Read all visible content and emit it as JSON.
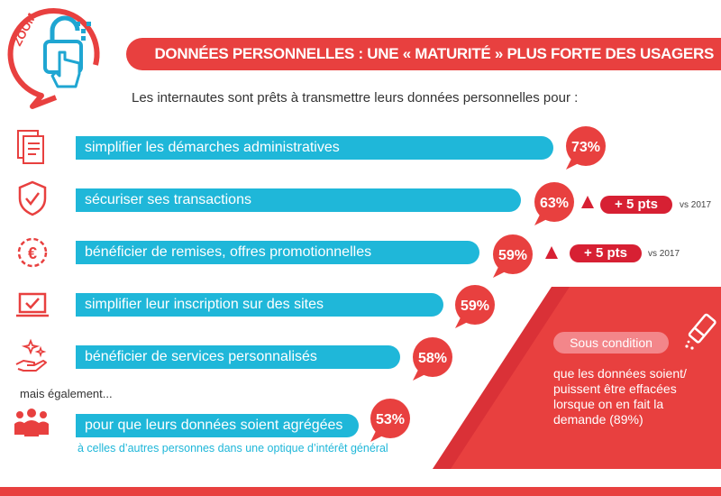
{
  "header": {
    "zoom_label": "ZOOM",
    "title": "DONNÉES PERSONNELLES : UNE « MATURITÉ » PLUS FORTE DES USAGERS"
  },
  "intro": "Les internautes sont prêts à transmettre leurs données personnelles pour :",
  "also_label": "mais également...",
  "sub_note": "à celles d’autres personnes dans une optique d’intérêt général",
  "condition": {
    "badge": "Sous condition",
    "text": "que les données soient/ puissent être effacées lorsque on en fait la demande (89%)"
  },
  "changes": [
    {
      "arrow": "up",
      "label": "+ 5 pts",
      "vs": "vs 2017"
    },
    {
      "arrow": "up",
      "label": "+ 5 pts",
      "vs": "vs 2017"
    }
  ],
  "colors": {
    "bar": "#1fb7d9",
    "accent": "#e8403f",
    "badge": "#d72033"
  },
  "icons": [
    "document-icon",
    "shield-check-icon",
    "euro-icon",
    "laptop-check-icon",
    "hand-sparkle-icon",
    "people-icon",
    "padlock-hand-icon",
    "eraser-icon"
  ],
  "chart_data": {
    "type": "bar",
    "orientation": "horizontal",
    "categories": [
      "simplifier les démarches administratives",
      "sécuriser ses transactions",
      "bénéficier de remises, offres promotionnelles",
      "simplifier leur inscription sur des sites",
      "bénéficier de services personnalisés",
      "pour que leurs données soient agrégées"
    ],
    "values": [
      73,
      63,
      59,
      59,
      58,
      53
    ],
    "value_labels": [
      "73%",
      "63%",
      "59%",
      "59%",
      "58%",
      "53%"
    ],
    "unit": "%"
  }
}
